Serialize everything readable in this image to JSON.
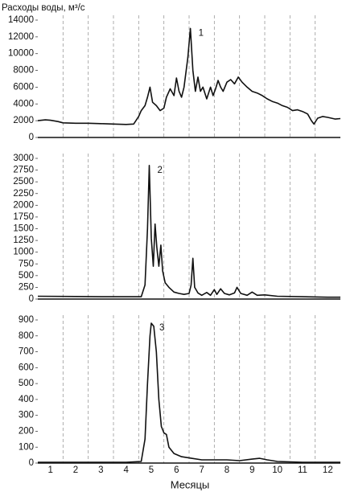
{
  "chart_data": [
    {
      "type": "line",
      "ylabel": "Расходы воды, м³/с",
      "annotation": "1",
      "color": "#111111",
      "x": [
        0.5,
        0.8,
        1.0,
        1.3,
        1.5,
        2.0,
        2.5,
        3.0,
        3.5,
        4.0,
        4.3,
        4.5,
        4.6,
        4.75,
        4.85,
        4.95,
        5.05,
        5.2,
        5.35,
        5.5,
        5.6,
        5.75,
        5.9,
        6.0,
        6.1,
        6.2,
        6.3,
        6.45,
        6.55,
        6.65,
        6.75,
        6.85,
        6.95,
        7.05,
        7.2,
        7.35,
        7.45,
        7.55,
        7.65,
        7.75,
        7.85,
        8.0,
        8.15,
        8.3,
        8.45,
        8.6,
        8.8,
        9.0,
        9.2,
        9.4,
        9.6,
        9.8,
        10.0,
        10.2,
        10.4,
        10.6,
        10.8,
        11.0,
        11.2,
        11.35,
        11.45,
        11.6,
        11.8,
        12.0,
        12.3,
        12.5
      ],
      "values": [
        2000,
        2100,
        2050,
        1900,
        1750,
        1700,
        1700,
        1650,
        1600,
        1550,
        1600,
        2500,
        3200,
        3800,
        4800,
        6000,
        4200,
        3800,
        3200,
        3500,
        4800,
        5800,
        5000,
        7100,
        5500,
        4800,
        6000,
        9500,
        13000,
        8000,
        5500,
        7200,
        5500,
        6000,
        4600,
        6000,
        5000,
        5800,
        6800,
        6000,
        5500,
        6600,
        6900,
        6400,
        7200,
        6600,
        6000,
        5500,
        5300,
        5000,
        4600,
        4300,
        4100,
        3800,
        3600,
        3200,
        3300,
        3100,
        2800,
        2000,
        1600,
        2300,
        2500,
        2400,
        2200,
        2250
      ],
      "xlim": [
        0.5,
        12.5
      ],
      "ylim": [
        0,
        14000
      ],
      "yticks": [
        0,
        2000,
        4000,
        6000,
        8000,
        10000,
        12000,
        14000
      ],
      "grid": true
    },
    {
      "type": "line",
      "annotation": "2",
      "color": "#111111",
      "x": [
        0.5,
        2.0,
        3.0,
        4.0,
        4.6,
        4.75,
        4.85,
        4.92,
        5.0,
        5.08,
        5.15,
        5.22,
        5.3,
        5.38,
        5.45,
        5.55,
        5.7,
        5.9,
        6.1,
        6.3,
        6.5,
        6.58,
        6.65,
        6.72,
        6.85,
        7.0,
        7.2,
        7.35,
        7.5,
        7.6,
        7.75,
        7.9,
        8.1,
        8.3,
        8.4,
        8.55,
        8.8,
        9.0,
        9.2,
        9.5,
        10.0,
        11.0,
        12.0,
        12.5
      ],
      "values": [
        60,
        55,
        50,
        50,
        50,
        300,
        1500,
        2850,
        1300,
        700,
        1600,
        1100,
        700,
        1150,
        600,
        350,
        250,
        150,
        120,
        100,
        120,
        300,
        870,
        250,
        130,
        80,
        140,
        80,
        200,
        100,
        220,
        120,
        90,
        130,
        250,
        120,
        80,
        150,
        80,
        90,
        60,
        50,
        40,
        40
      ],
      "xlim": [
        0.5,
        12.5
      ],
      "ylim": [
        0,
        3000
      ],
      "yticks": [
        0,
        250,
        500,
        750,
        1000,
        1250,
        1500,
        1750,
        2000,
        2250,
        2500,
        2750,
        3000
      ],
      "grid": true
    },
    {
      "type": "line",
      "annotation": "3",
      "color": "#111111",
      "xlabel": "Месяцы",
      "x": [
        0.5,
        2.0,
        4.0,
        4.6,
        4.75,
        4.85,
        4.95,
        5.0,
        5.1,
        5.2,
        5.3,
        5.4,
        5.5,
        5.6,
        5.7,
        5.9,
        6.2,
        6.6,
        7.0,
        8.0,
        8.5,
        9.0,
        9.3,
        9.6,
        10.0,
        11.0,
        12.5
      ],
      "values": [
        5,
        5,
        5,
        10,
        150,
        500,
        800,
        880,
        860,
        700,
        400,
        230,
        190,
        180,
        100,
        60,
        40,
        30,
        20,
        20,
        15,
        25,
        30,
        20,
        10,
        5,
        5
      ],
      "xlim": [
        0.5,
        12.5
      ],
      "ylim": [
        0,
        900
      ],
      "yticks": [
        0,
        100,
        200,
        300,
        400,
        500,
        600,
        700,
        800,
        900
      ],
      "xticks": [
        1,
        2,
        3,
        4,
        5,
        6,
        7,
        8,
        9,
        10,
        11,
        12
      ],
      "grid": true
    }
  ]
}
